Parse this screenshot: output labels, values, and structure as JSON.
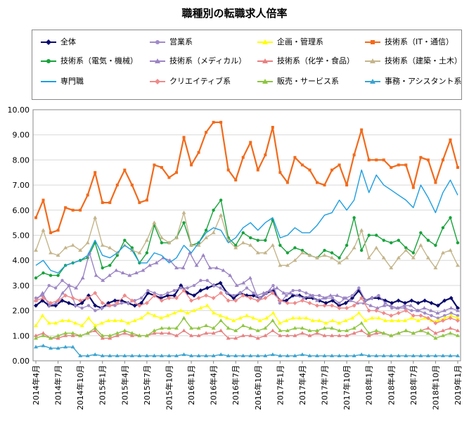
{
  "chart_data": {
    "type": "line",
    "title": "職種別の転職求人倍率",
    "xlabel": "",
    "ylabel": "",
    "ylim": [
      0,
      10
    ],
    "yticks": [
      "0.00",
      "1.00",
      "2.00",
      "3.00",
      "4.00",
      "5.00",
      "6.00",
      "7.00",
      "8.00",
      "9.00",
      "10.00"
    ],
    "x_tick_labels": [
      "2014年4月",
      "2014年7月",
      "2014年10月",
      "2015年1月",
      "2015年4月",
      "2015年7月",
      "2015年10月",
      "2016年1月",
      "2016年4月",
      "2016年7月",
      "2016年10月",
      "2017年1月",
      "2017年4月",
      "2017年7月",
      "2017年10月",
      "2018年1月",
      "2018年4月",
      "2018年7月",
      "2018年10月",
      "2019年1月"
    ],
    "series": [
      {
        "name": "全体",
        "color": "#0a0a6e",
        "marker": "diamond",
        "values": [
          2.2,
          2.4,
          2.2,
          2.2,
          2.4,
          2.3,
          2.2,
          2.3,
          2.6,
          2.2,
          2.1,
          2.3,
          2.4,
          2.4,
          2.3,
          2.2,
          2.3,
          2.7,
          2.6,
          2.5,
          2.6,
          2.6,
          3.0,
          2.7,
          2.6,
          2.8,
          2.9,
          3.0,
          3.1,
          2.7,
          2.5,
          2.7,
          2.6,
          2.6,
          2.5,
          2.7,
          2.8,
          2.4,
          2.4,
          2.6,
          2.6,
          2.5,
          2.5,
          2.4,
          2.3,
          2.4,
          2.2,
          2.3,
          2.5,
          2.8,
          2.4,
          2.5,
          2.5,
          2.4,
          2.3,
          2.4,
          2.3,
          2.4,
          2.3,
          2.4,
          2.3,
          2.2,
          2.4,
          2.5,
          2.1
        ]
      },
      {
        "name": "営業系",
        "color": "#a08ac8",
        "marker": "circle",
        "values": [
          2.5,
          2.6,
          3.0,
          2.9,
          3.2,
          3.0,
          2.2,
          2.1,
          2.2,
          2.0,
          2.1,
          2.2,
          2.2,
          2.3,
          2.3,
          2.4,
          2.5,
          2.8,
          2.7,
          2.6,
          2.7,
          2.8,
          2.9,
          2.9,
          3.0,
          3.2,
          3.2,
          3.0,
          2.9,
          2.7,
          2.6,
          2.7,
          2.9,
          2.7,
          2.5,
          2.7,
          3.0,
          2.3,
          2.6,
          2.8,
          2.8,
          2.7,
          2.6,
          2.6,
          2.5,
          2.5,
          2.3,
          2.5,
          2.6,
          2.9,
          2.4,
          2.5,
          2.6,
          2.3,
          2.1,
          2.1,
          2.1,
          2.0,
          2.0,
          1.9,
          1.8,
          1.7,
          1.8,
          1.9,
          1.8
        ]
      },
      {
        "name": "企画・管理系",
        "color": "#ffff00",
        "marker": "triangle",
        "values": [
          1.4,
          1.8,
          1.5,
          1.5,
          1.6,
          1.6,
          1.5,
          1.4,
          1.7,
          1.4,
          1.5,
          1.6,
          1.6,
          1.6,
          1.5,
          1.6,
          1.7,
          1.9,
          1.8,
          1.7,
          1.8,
          1.9,
          2.0,
          1.9,
          2.0,
          2.1,
          2.2,
          1.9,
          1.8,
          1.7,
          1.6,
          1.7,
          1.8,
          1.7,
          1.6,
          1.7,
          1.9,
          1.5,
          1.6,
          1.7,
          1.7,
          1.7,
          1.6,
          1.6,
          1.5,
          1.6,
          1.5,
          1.6,
          1.7,
          1.9,
          1.6,
          1.7,
          1.7,
          1.6,
          1.6,
          1.6,
          1.6,
          1.7,
          1.6,
          1.7,
          1.6,
          1.6,
          1.7,
          1.8,
          1.7
        ]
      },
      {
        "name": "技術系（IT・通信）",
        "color": "#f26a1b",
        "marker": "square",
        "values": [
          5.7,
          6.4,
          5.1,
          5.2,
          6.1,
          6.0,
          6.0,
          6.6,
          7.5,
          6.3,
          6.3,
          7.0,
          7.6,
          7.0,
          6.3,
          6.4,
          7.8,
          7.7,
          7.3,
          7.5,
          8.9,
          7.8,
          8.3,
          9.1,
          9.5,
          9.5,
          7.6,
          7.2,
          8.1,
          8.7,
          7.6,
          8.2,
          9.3,
          7.5,
          7.1,
          8.1,
          7.8,
          7.6,
          7.1,
          7.0,
          7.6,
          7.8,
          7.0,
          8.2,
          9.2,
          8.0,
          8.0,
          8.0,
          7.7,
          7.8,
          7.8,
          6.9,
          8.1,
          8.0,
          7.1,
          8.0,
          8.8,
          7.7
        ]
      },
      {
        "name": "技術系（電気・機械）",
        "color": "#17a33b",
        "marker": "circle",
        "values": [
          3.3,
          3.5,
          3.4,
          3.4,
          3.8,
          3.9,
          4.0,
          4.1,
          4.7,
          3.7,
          3.8,
          4.2,
          4.8,
          4.5,
          3.9,
          4.3,
          5.4,
          4.7,
          4.7,
          4.9,
          5.5,
          4.6,
          4.7,
          5.2,
          6.0,
          6.4,
          4.9,
          4.6,
          5.1,
          4.9,
          4.8,
          4.8,
          5.6,
          4.6,
          4.3,
          4.5,
          4.4,
          4.2,
          4.1,
          4.4,
          4.3,
          4.1,
          4.6,
          5.7,
          4.4,
          5.0,
          5.0,
          4.8,
          4.7,
          4.8,
          4.5,
          4.3,
          5.1,
          4.8,
          4.6,
          5.3,
          5.7,
          4.7
        ]
      },
      {
        "name": "技術系（メディカル）",
        "color": "#9b84c4",
        "marker": "triangle",
        "values": [
          2.4,
          2.7,
          2.2,
          2.3,
          2.7,
          3.0,
          2.9,
          3.3,
          4.3,
          3.4,
          3.2,
          3.4,
          3.6,
          3.5,
          3.4,
          3.5,
          3.6,
          3.8,
          3.9,
          4.1,
          4.0,
          3.7,
          3.7,
          4.3,
          3.8,
          4.2,
          3.7,
          3.7,
          3.6,
          3.4,
          3.0,
          3.1,
          3.3,
          2.6,
          2.7,
          2.8,
          2.9,
          2.7,
          2.7,
          2.6,
          2.5,
          2.6,
          2.4,
          2.5,
          2.6,
          2.6,
          2.5,
          2.4,
          2.3,
          2.3,
          2.2,
          2.1,
          2.2,
          2.2,
          2.1,
          2.2,
          2.2,
          2.0,
          2.1,
          2.0,
          1.9,
          2.0,
          2.1,
          2.0
        ]
      },
      {
        "name": "技術系（化学・食品）",
        "color": "#e88080",
        "marker": "triangle",
        "values": [
          1.0,
          1.1,
          0.9,
          0.9,
          1.0,
          1.0,
          1.0,
          1.1,
          1.2,
          0.9,
          0.9,
          1.0,
          1.1,
          1.0,
          1.0,
          1.0,
          1.1,
          1.1,
          1.1,
          1.0,
          1.2,
          1.0,
          1.0,
          1.1,
          1.1,
          1.2,
          0.9,
          0.9,
          1.0,
          1.0,
          0.9,
          1.0,
          1.2,
          1.0,
          1.0,
          1.0,
          1.1,
          1.0,
          1.1,
          1.0,
          1.0,
          1.0,
          1.0,
          1.1,
          1.2,
          1.0,
          1.1,
          1.1,
          1.0,
          1.1,
          1.2,
          1.1,
          1.2,
          1.3,
          1.1,
          1.2,
          1.3,
          1.2
        ]
      },
      {
        "name": "技術系（建築・土木）",
        "color": "#c4b58a",
        "marker": "triangle",
        "values": [
          4.4,
          5.2,
          4.3,
          4.2,
          4.5,
          4.6,
          4.4,
          4.7,
          5.7,
          4.6,
          4.5,
          4.3,
          4.6,
          4.4,
          4.3,
          4.8,
          5.5,
          4.9,
          4.7,
          4.9,
          5.9,
          4.6,
          4.6,
          4.9,
          5.1,
          5.8,
          4.8,
          4.5,
          4.7,
          4.6,
          4.3,
          4.3,
          4.6,
          3.8,
          3.8,
          4.0,
          4.3,
          4.2,
          4.1,
          4.2,
          4.1,
          3.9,
          4.1,
          4.5,
          5.2,
          4.1,
          4.5,
          4.1,
          3.7,
          4.1,
          4.4,
          4.1,
          4.6,
          4.1,
          3.7,
          4.3,
          4.4,
          3.8
        ]
      },
      {
        "name": "専門職",
        "color": "#1e9ee0",
        "marker": "none",
        "values": [
          3.8,
          4.0,
          3.6,
          3.5,
          3.8,
          3.9,
          4.0,
          4.2,
          4.8,
          4.2,
          4.1,
          4.3,
          4.6,
          4.4,
          3.9,
          3.9,
          4.3,
          4.2,
          3.9,
          4.1,
          4.6,
          4.3,
          4.7,
          5.1,
          5.3,
          5.2,
          4.7,
          4.9,
          5.3,
          5.5,
          5.2,
          5.5,
          5.7,
          4.9,
          5.0,
          5.3,
          5.1,
          5.1,
          5.4,
          5.8,
          5.9,
          6.4,
          6.0,
          6.4,
          7.6,
          6.7,
          7.4,
          7.0,
          6.8,
          6.6,
          6.4,
          6.1,
          7.0,
          6.5,
          5.9,
          6.7,
          7.2,
          6.6
        ]
      },
      {
        "name": "クリエイティブ系",
        "color": "#f08a8a",
        "marker": "diamond",
        "values": [
          2.4,
          2.5,
          2.3,
          2.4,
          2.6,
          2.5,
          2.4,
          2.5,
          2.7,
          2.3,
          2.2,
          2.3,
          2.6,
          2.4,
          2.2,
          2.3,
          2.6,
          2.4,
          2.5,
          2.5,
          2.8,
          2.4,
          2.5,
          2.6,
          2.5,
          2.7,
          2.4,
          2.4,
          2.6,
          2.5,
          2.4,
          2.5,
          2.7,
          2.4,
          2.3,
          2.3,
          2.4,
          2.3,
          2.2,
          2.2,
          2.2,
          2.1,
          2.1,
          2.2,
          2.5,
          2.0,
          2.0,
          1.9,
          1.8,
          1.9,
          2.0,
          1.8,
          1.8,
          1.7,
          1.5,
          1.6,
          1.7,
          1.6
        ]
      },
      {
        "name": "販売・サービス系",
        "color": "#8dc63f",
        "marker": "triangle",
        "values": [
          0.9,
          1.0,
          0.9,
          1.0,
          1.1,
          1.1,
          1.0,
          1.1,
          1.3,
          1.0,
          1.0,
          1.1,
          1.2,
          1.1,
          1.0,
          1.0,
          1.2,
          1.3,
          1.3,
          1.3,
          1.7,
          1.3,
          1.3,
          1.4,
          1.3,
          1.6,
          1.3,
          1.2,
          1.4,
          1.3,
          1.2,
          1.3,
          1.6,
          1.2,
          1.2,
          1.3,
          1.3,
          1.2,
          1.2,
          1.3,
          1.3,
          1.2,
          1.2,
          1.3,
          1.5,
          1.1,
          1.2,
          1.1,
          1.0,
          1.1,
          1.2,
          1.1,
          1.2,
          1.1,
          0.9,
          1.0,
          1.1,
          1.0
        ]
      },
      {
        "name": "事務・アシスタント系",
        "color": "#3ba3d0",
        "marker": "triangle",
        "values": [
          0.55,
          0.6,
          0.5,
          0.5,
          0.55,
          0.55,
          0.2,
          0.2,
          0.25,
          0.2,
          0.2,
          0.2,
          0.2,
          0.2,
          0.2,
          0.2,
          0.2,
          0.2,
          0.2,
          0.2,
          0.25,
          0.2,
          0.2,
          0.2,
          0.2,
          0.25,
          0.2,
          0.2,
          0.2,
          0.2,
          0.2,
          0.2,
          0.25,
          0.2,
          0.2,
          0.2,
          0.25,
          0.2,
          0.2,
          0.2,
          0.2,
          0.2,
          0.2,
          0.2,
          0.25,
          0.2,
          0.2,
          0.2,
          0.2,
          0.2,
          0.2,
          0.2,
          0.2,
          0.2,
          0.2,
          0.2,
          0.2,
          0.2
        ]
      }
    ]
  }
}
